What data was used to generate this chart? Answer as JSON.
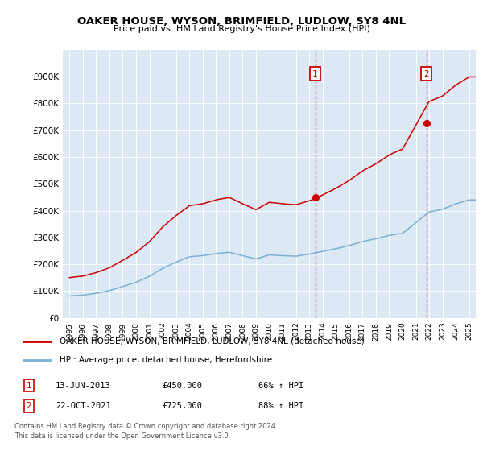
{
  "title": "OAKER HOUSE, WYSON, BRIMFIELD, LUDLOW, SY8 4NL",
  "subtitle": "Price paid vs. HM Land Registry's House Price Index (HPI)",
  "legend_line1": "OAKER HOUSE, WYSON, BRIMFIELD, LUDLOW, SY8 4NL (detached house)",
  "legend_line2": "HPI: Average price, detached house, Herefordshire",
  "annotation1_num": "1",
  "annotation1_date": "13-JUN-2013",
  "annotation1_price": "£450,000",
  "annotation1_hpi": "66% ↑ HPI",
  "annotation2_num": "2",
  "annotation2_date": "22-OCT-2021",
  "annotation2_price": "£725,000",
  "annotation2_hpi": "88% ↑ HPI",
  "footnote_line1": "Contains HM Land Registry data © Crown copyright and database right 2024.",
  "footnote_line2": "This data is licensed under the Open Government Licence v3.0.",
  "vline1_x": 2013.45,
  "vline2_x": 2021.8,
  "marker1_red_y": 450000,
  "marker2_red_y": 725000,
  "ylim": [
    0,
    1000000
  ],
  "xlim": [
    1994.5,
    2025.5
  ],
  "plot_bg": "#dce9f5",
  "red_color": "#cc0000",
  "blue_color": "#7ab0d4",
  "years_hpi": [
    1995,
    1996,
    1997,
    1998,
    1999,
    2000,
    2001,
    2002,
    2003,
    2004,
    2005,
    2006,
    2007,
    2008,
    2009,
    2010,
    2011,
    2012,
    2013,
    2014,
    2015,
    2016,
    2017,
    2018,
    2019,
    2020,
    2021,
    2022,
    2023,
    2024,
    2025
  ],
  "hpi_vals": [
    82000,
    85000,
    92000,
    102000,
    117000,
    133000,
    155000,
    185000,
    208000,
    228000,
    232000,
    240000,
    245000,
    232000,
    220000,
    235000,
    232000,
    230000,
    238000,
    248000,
    258000,
    270000,
    285000,
    295000,
    308000,
    315000,
    355000,
    395000,
    405000,
    425000,
    440000
  ],
  "scale1": 1.834,
  "scale2": 2.042
}
